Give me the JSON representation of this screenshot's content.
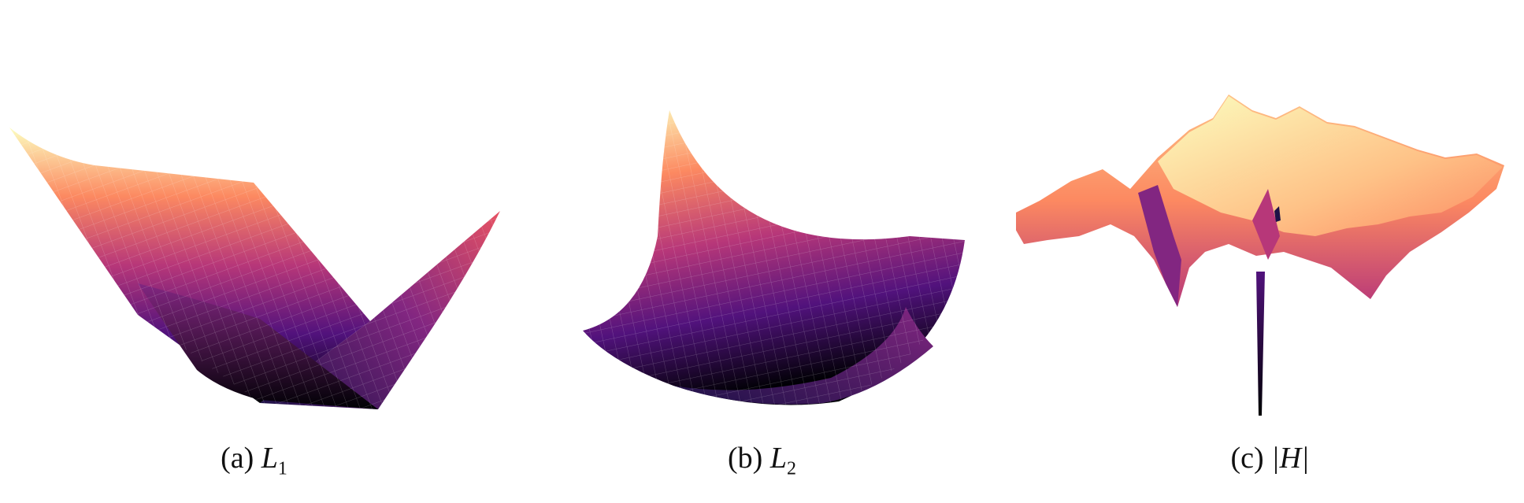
{
  "figure": {
    "panels": [
      {
        "id": "a",
        "prefix": "(a)",
        "symbol": "L",
        "subscript": "1",
        "surface": "L1"
      },
      {
        "id": "b",
        "prefix": "(b)",
        "symbol": "L",
        "subscript": "2",
        "surface": "L2"
      },
      {
        "id": "c",
        "prefix": "(c)",
        "symbol": "|H|",
        "subscript": "",
        "surface": "abs-H"
      }
    ],
    "colormap": [
      "#000004",
      "#1d1147",
      "#51127c",
      "#822681",
      "#b73779",
      "#e75263",
      "#fc8961",
      "#fec287",
      "#fcfdbf"
    ]
  }
}
